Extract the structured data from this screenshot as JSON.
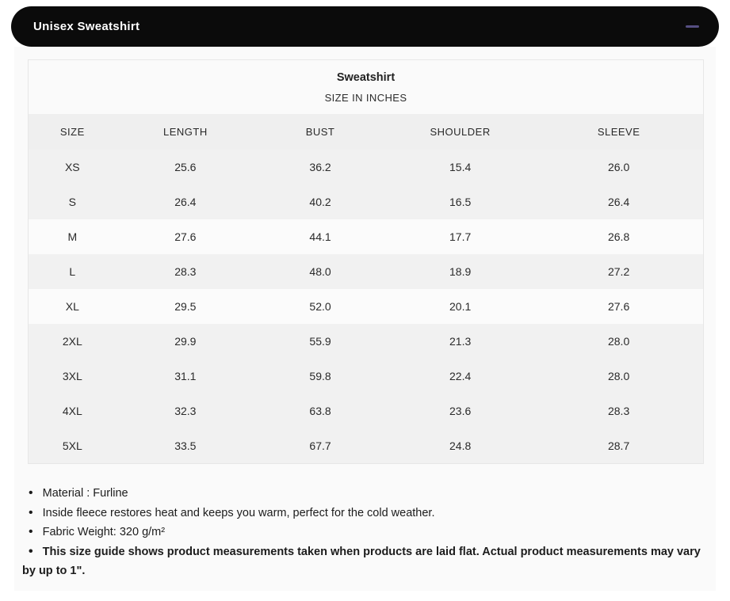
{
  "header": {
    "title": "Unisex Sweatshirt"
  },
  "colors": {
    "header_bg": "#0b0b0b",
    "header_text": "#ffffff",
    "minus_accent": "#564f82",
    "panel_bg": "#fafafa",
    "header_row_bg": "#efefef",
    "row_gray": "#f1f1f1",
    "row_light": "#fbfbfb",
    "table_border": "#e7e7e7",
    "text": "#212121"
  },
  "table": {
    "title": "Sweatshirt",
    "subtitle": "SIZE IN INCHES",
    "columns": [
      "SIZE",
      "LENGTH",
      "BUST",
      "SHOULDER",
      "SLEEVE"
    ],
    "rows": [
      {
        "cells": [
          "XS",
          "25.6",
          "36.2",
          "15.4",
          "26.0"
        ],
        "light": false
      },
      {
        "cells": [
          "S",
          "26.4",
          "40.2",
          "16.5",
          "26.4"
        ],
        "light": false
      },
      {
        "cells": [
          "M",
          "27.6",
          "44.1",
          "17.7",
          "26.8"
        ],
        "light": true
      },
      {
        "cells": [
          "L",
          "28.3",
          "48.0",
          "18.9",
          "27.2"
        ],
        "light": false
      },
      {
        "cells": [
          "XL",
          "29.5",
          "52.0",
          "20.1",
          "27.6"
        ],
        "light": true
      },
      {
        "cells": [
          "2XL",
          "29.9",
          "55.9",
          "21.3",
          "28.0"
        ],
        "light": false
      },
      {
        "cells": [
          "3XL",
          "31.1",
          "59.8",
          "22.4",
          "28.0"
        ],
        "light": false
      },
      {
        "cells": [
          "4XL",
          "32.3",
          "63.8",
          "23.6",
          "28.3"
        ],
        "light": false
      },
      {
        "cells": [
          "5XL",
          "33.5",
          "67.7",
          "24.8",
          "28.7"
        ],
        "light": false
      }
    ]
  },
  "notes": [
    {
      "text": "Material : Furline",
      "bold": false
    },
    {
      "text": "Inside fleece restores heat and keeps you warm, perfect for the cold weather.",
      "bold": false
    },
    {
      "text": "Fabric Weight: 320 g/m²",
      "bold": false
    },
    {
      "text": "This size guide shows product measurements taken when products are laid flat. Actual product measurements may vary by up to 1\".",
      "bold": true
    }
  ]
}
